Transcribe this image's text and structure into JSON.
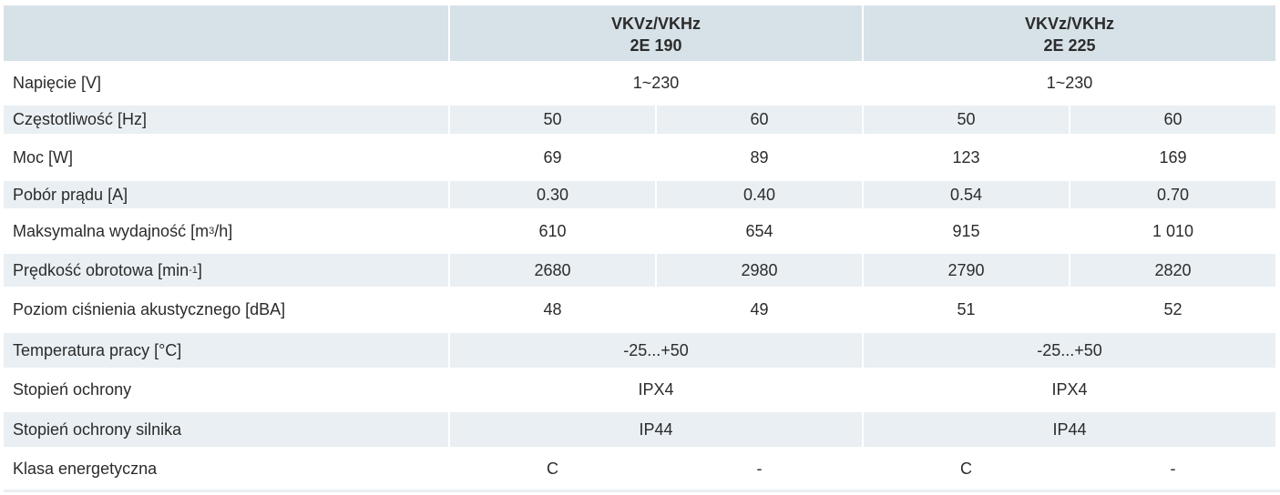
{
  "header": {
    "models": [
      {
        "line1": "VKVz/VKHz",
        "line2": "2E 190"
      },
      {
        "line1": "VKVz/VKHz",
        "line2": "2E 225"
      }
    ]
  },
  "rows": [
    {
      "label": "Napięcie [V]",
      "span": true,
      "values": [
        "1~230",
        "1~230"
      ]
    },
    {
      "label": "Częstotliwość [Hz]",
      "values": [
        "50",
        "60",
        "50",
        "60"
      ]
    },
    {
      "label": "Moc [W]",
      "values": [
        "69",
        "89",
        "123",
        "169"
      ]
    },
    {
      "label": "Pobór prądu [A]",
      "values": [
        "0.30",
        "0.40",
        "0.54",
        "0.70"
      ]
    },
    {
      "label": "Maksymalna wydajność [m",
      "sup": "3",
      "label_end": "/h]",
      "values": [
        "610",
        "654",
        "915",
        "1 010"
      ]
    },
    {
      "label": "Prędkość obrotowa [min",
      "sup": "-1",
      "label_end": "]",
      "values": [
        "2680",
        "2980",
        "2790",
        "2820"
      ]
    },
    {
      "label": "Poziom ciśnienia akustycznego [dBA]",
      "values": [
        "48",
        "49",
        "51",
        "52"
      ]
    },
    {
      "label": "Temperatura pracy [°C]",
      "span": true,
      "values": [
        "-25...+50",
        "-25...+50"
      ]
    },
    {
      "label": "Stopień ochrony",
      "span": true,
      "values": [
        "IPX4",
        "IPX4"
      ]
    },
    {
      "label": "Stopień ochrony silnika",
      "span": true,
      "values": [
        "IP44",
        "IP44"
      ]
    },
    {
      "label": "Klasa energetyczna",
      "values": [
        "C",
        "-",
        "C",
        "-"
      ]
    }
  ],
  "colors": {
    "header_bg": "#d7e1e8",
    "stripe_bg": "#e9eff3",
    "text": "#2b2b2b"
  }
}
